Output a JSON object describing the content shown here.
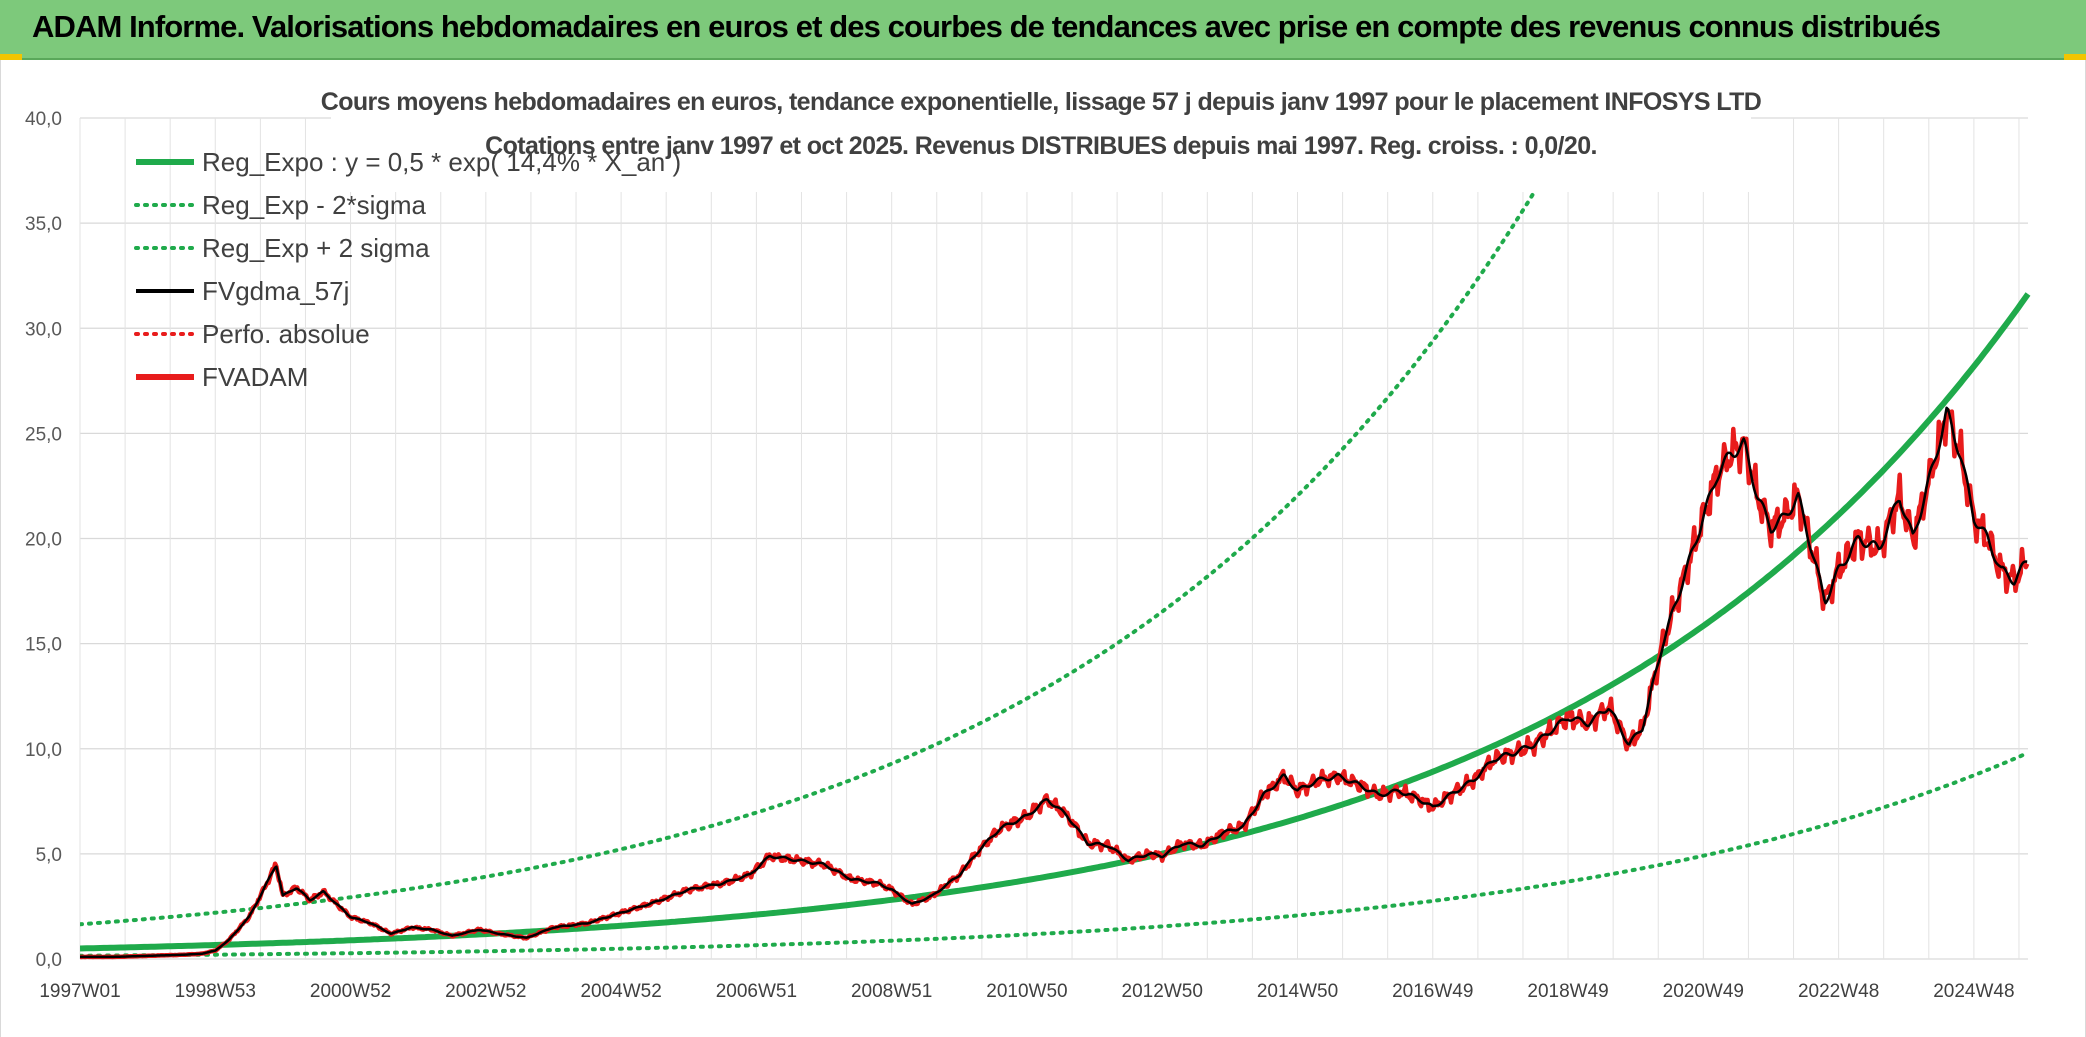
{
  "header": {
    "title": "ADAM Informe. Valorisations hebdomadaires en euros et des courbes de tendances avec prise en compte des revenus connus distribués"
  },
  "chart_data": {
    "type": "line",
    "title_line1": "Cours moyens hebdomadaires en euros, tendance exponentielle, lissage 57 j depuis janv 1997 pour le placement INFOSYS LTD",
    "title_line2": "Cotations entre janv 1997 et oct 2025. Revenus DISTRIBUES depuis mai 1997. Reg. croiss. : 0,0/20.",
    "xlabel": "",
    "ylabel": "",
    "ylim": [
      0,
      40
    ],
    "xlim": [
      1997.0,
      2025.8
    ],
    "yticks": [
      "0,0",
      "5,0",
      "10,0",
      "15,0",
      "20,0",
      "25,0",
      "30,0",
      "35,0",
      "40,0"
    ],
    "xticks": [
      "1997W01",
      "1998W53",
      "2000W52",
      "2002W52",
      "2004W52",
      "2006W51",
      "2008W51",
      "2010W50",
      "2012W50",
      "2014W50",
      "2016W49",
      "2018W49",
      "2020W49",
      "2022W48",
      "2024W48"
    ],
    "xtick_years": [
      1997.0,
      1999.0,
      2001.0,
      2003.0,
      2005.0,
      2007.0,
      2009.0,
      2011.0,
      2013.0,
      2015.0,
      2017.0,
      2019.0,
      2021.0,
      2023.0,
      2025.0
    ],
    "grid": true,
    "legend_position": "top-left",
    "regression": {
      "a": 0.5,
      "rate": 0.144,
      "sigma_factor_low": 0.31,
      "sigma_factor_high": 3.3
    },
    "series": [
      {
        "name": "Reg_Expo : y = 0,5 * exp( 14,4% *  X_an )",
        "color": "#1faa4b",
        "style": "solid",
        "kind": "reg"
      },
      {
        "name": "Reg_Exp - 2*sigma",
        "color": "#1faa4b",
        "style": "dotted",
        "kind": "reg_low"
      },
      {
        "name": "Reg_Exp + 2 sigma",
        "color": "#1faa4b",
        "style": "dotted",
        "kind": "reg_high"
      },
      {
        "name": "FVgdma_57j",
        "color": "#000000",
        "style": "solid",
        "kind": "smooth"
      },
      {
        "name": "Perfo. absolue",
        "color": "#e81c1c",
        "style": "dotted",
        "kind": "none"
      },
      {
        "name": "FVADAM",
        "color": "#e81c1c",
        "style": "solid",
        "kind": "price"
      }
    ],
    "price": {
      "x": [
        1997.0,
        1997.5,
        1998.0,
        1998.5,
        1998.8,
        1999.0,
        1999.2,
        1999.5,
        1999.7,
        1999.9,
        2000.0,
        2000.2,
        2000.4,
        2000.6,
        2000.8,
        2001.0,
        2001.3,
        2001.6,
        2001.9,
        2002.2,
        2002.5,
        2002.9,
        2003.2,
        2003.6,
        2004.0,
        2004.5,
        2005.0,
        2005.5,
        2006.0,
        2006.5,
        2006.9,
        2007.2,
        2007.6,
        2008.0,
        2008.4,
        2008.8,
        2009.0,
        2009.3,
        2009.6,
        2010.0,
        2010.3,
        2010.6,
        2010.8,
        2011.0,
        2011.3,
        2011.6,
        2011.9,
        2012.2,
        2012.5,
        2012.8,
        2013.0,
        2013.3,
        2013.6,
        2013.9,
        2014.2,
        2014.5,
        2014.8,
        2015.0,
        2015.3,
        2015.6,
        2015.9,
        2016.2,
        2016.5,
        2016.8,
        2017.0,
        2017.3,
        2017.6,
        2017.9,
        2018.2,
        2018.5,
        2018.8,
        2019.0,
        2019.3,
        2019.6,
        2019.9,
        2020.1,
        2020.25,
        2020.4,
        2020.6,
        2020.8,
        2021.0,
        2021.2,
        2021.4,
        2021.6,
        2021.8,
        2022.0,
        2022.2,
        2022.4,
        2022.6,
        2022.8,
        2023.0,
        2023.1,
        2023.3,
        2023.6,
        2023.9,
        2024.1,
        2024.4,
        2024.6,
        2024.8,
        2025.0,
        2025.2,
        2025.4,
        2025.6,
        2025.8
      ],
      "y": [
        0.1,
        0.1,
        0.15,
        0.2,
        0.25,
        0.4,
        0.9,
        2.0,
        3.2,
        4.5,
        3.0,
        3.4,
        2.8,
        3.2,
        2.6,
        2.0,
        1.7,
        1.2,
        1.5,
        1.4,
        1.1,
        1.4,
        1.2,
        1.0,
        1.5,
        1.7,
        2.2,
        2.7,
        3.3,
        3.6,
        4.0,
        4.9,
        4.7,
        4.5,
        3.8,
        3.6,
        3.3,
        2.6,
        3.0,
        4.0,
        5.2,
        6.2,
        6.5,
        6.8,
        7.6,
        6.8,
        5.5,
        5.4,
        4.7,
        5.0,
        4.9,
        5.5,
        5.4,
        6.0,
        6.3,
        7.8,
        8.7,
        8.0,
        8.5,
        8.7,
        8.3,
        7.8,
        8.0,
        7.6,
        7.2,
        7.9,
        8.5,
        9.5,
        9.8,
        10.2,
        11.0,
        11.5,
        11.2,
        12.0,
        10.2,
        11.0,
        13.0,
        15.0,
        17.0,
        19.0,
        21.0,
        23.0,
        24.0,
        24.5,
        22.0,
        20.5,
        21.0,
        22.0,
        19.5,
        17.0,
        18.5,
        19.0,
        20.0,
        19.5,
        22.0,
        20.0,
        23.5,
        26.0,
        24.0,
        21.0,
        20.0,
        18.5,
        18.0,
        19.0
      ]
    }
  }
}
